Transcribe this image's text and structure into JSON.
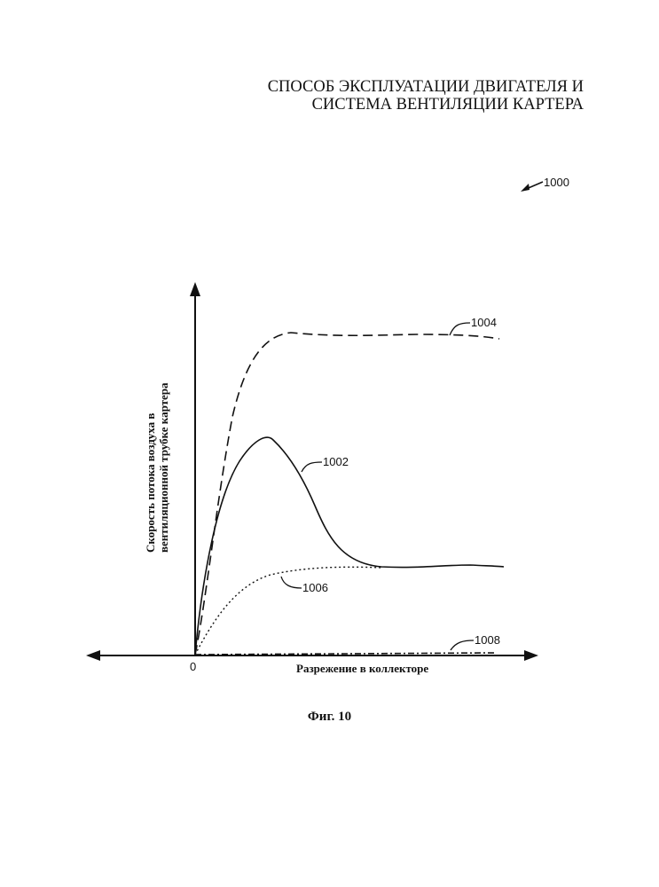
{
  "title": {
    "line1": "СПОСОБ ЭКСПЛУАТАЦИИ ДВИГАТЕЛЯ И",
    "line2": "СИСТЕМА ВЕНТИЛЯЦИИ КАРТЕРА"
  },
  "figure": {
    "ref_main": "1000",
    "y_axis_label_line1": "Скорость потока воздуха в",
    "y_axis_label_line2": "вентиляционной трубке картера",
    "x_axis_label": "Разрежение в коллекторе",
    "origin_label": "0",
    "curve_labels": {
      "c1004": "1004",
      "c1002": "1002",
      "c1006": "1006",
      "c1008": "1008"
    },
    "caption": "Фиг. 10"
  }
}
